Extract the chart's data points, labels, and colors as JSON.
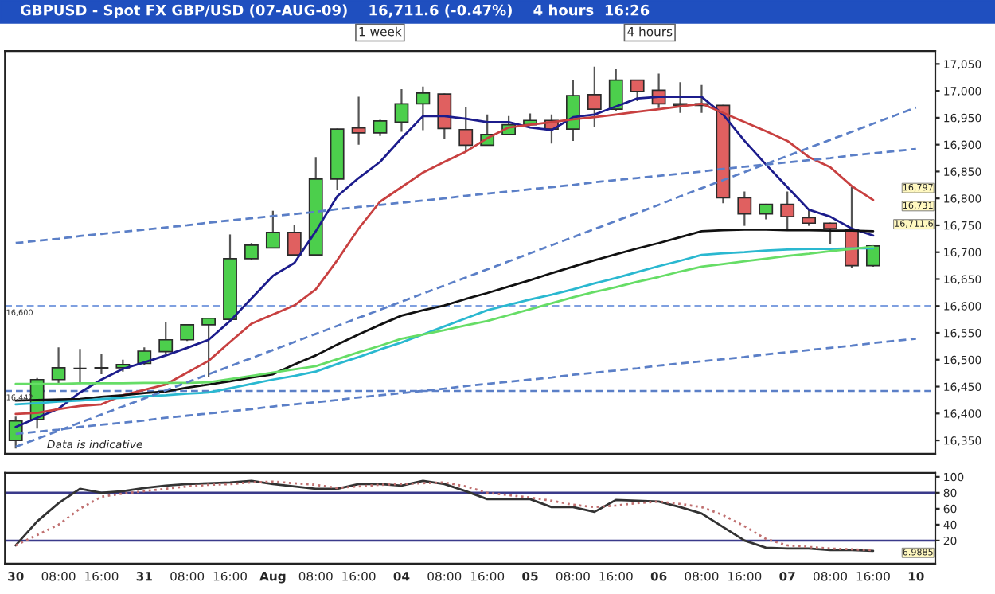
{
  "chart_data": [
    {
      "type": "candlestick",
      "title": "GBPUSD - Spot FX GBP/USD (07-AUG-09)    16,711.6 (-0.47%)    4 hours  16:26",
      "categories": [
        "30",
        null,
        "08:00",
        null,
        "16:00",
        null,
        "31",
        null,
        "08:00",
        null,
        "16:00",
        null,
        "Aug",
        null,
        "08:00",
        null,
        "16:00",
        null,
        "04",
        null,
        "08:00",
        null,
        "16:00",
        null,
        "05",
        null,
        "08:00",
        null,
        "16:00",
        null,
        "06",
        null,
        "08:00",
        null,
        "16:00",
        null,
        "07",
        null,
        "08:00",
        null,
        "16:00",
        null,
        "10"
      ],
      "ohlc": [
        [
          16350,
          16394,
          16335,
          16386
        ],
        [
          16389,
          16466,
          16372,
          16463
        ],
        [
          16463,
          16523,
          16456,
          16485
        ],
        [
          16484,
          16520,
          16455,
          16484
        ],
        [
          16484,
          16510,
          16473,
          16485
        ],
        [
          16485,
          16500,
          16478,
          16491
        ],
        [
          16493,
          16523,
          16490,
          16516
        ],
        [
          16515,
          16570,
          16510,
          16537
        ],
        [
          16537,
          16566,
          16535,
          16565
        ],
        [
          16565,
          16578,
          16468,
          16577
        ],
        [
          16575,
          16733,
          16574,
          16688
        ],
        [
          16688,
          16717,
          16685,
          16713
        ],
        [
          16708,
          16777,
          16707,
          16737
        ],
        [
          16737,
          16751,
          16694,
          16695
        ],
        [
          16695,
          16877,
          16694,
          16836
        ],
        [
          16836,
          16930,
          16816,
          16929
        ],
        [
          16931,
          16989,
          16900,
          16922
        ],
        [
          16922,
          16946,
          16916,
          16944
        ],
        [
          16942,
          17003,
          16924,
          16976
        ],
        [
          16976,
          17008,
          16927,
          16996
        ],
        [
          16994,
          16995,
          16910,
          16930
        ],
        [
          16928,
          16969,
          16887,
          16899
        ],
        [
          16899,
          16956,
          16899,
          16919
        ],
        [
          16919,
          16953,
          16918,
          16937
        ],
        [
          16937,
          16958,
          16935,
          16945
        ],
        [
          16945,
          16956,
          16902,
          16929
        ],
        [
          16929,
          17020,
          16907,
          16991
        ],
        [
          16993,
          17045,
          16932,
          16966
        ],
        [
          16966,
          17040,
          16963,
          17020
        ],
        [
          17020,
          17021,
          16981,
          16999
        ],
        [
          17001,
          17032,
          16968,
          16976
        ],
        [
          16973,
          17016,
          16959,
          16976
        ],
        [
          16976,
          17011,
          16959,
          16973
        ],
        [
          16973,
          16974,
          16791,
          16801
        ],
        [
          16801,
          16813,
          16749,
          16771
        ],
        [
          16771,
          16790,
          16761,
          16789
        ],
        [
          16789,
          16813,
          16744,
          16766
        ],
        [
          16764,
          16779,
          16749,
          16754
        ],
        [
          16754,
          16755,
          16715,
          16744
        ],
        [
          16742,
          16821,
          16670,
          16675
        ],
        [
          16675,
          16713,
          16673,
          16711.6
        ],
        null,
        null
      ],
      "colors": [
        "#4ccf4c",
        "#4ccf4c",
        "#4ccf4c",
        "#333333",
        "#333333",
        "#4ccf4c",
        "#4ccf4c",
        "#4ccf4c",
        "#4ccf4c",
        "#4ccf4c",
        "#4ccf4c",
        "#4ccf4c",
        "#4ccf4c",
        "#e06060",
        "#4ccf4c",
        "#4ccf4c",
        "#e06060",
        "#4ccf4c",
        "#4ccf4c",
        "#4ccf4c",
        "#e06060",
        "#e06060",
        "#4ccf4c",
        "#4ccf4c",
        "#4ccf4c",
        "#e06060",
        "#4ccf4c",
        "#e06060",
        "#4ccf4c",
        "#e06060",
        "#e06060",
        "#808080",
        "#808080",
        "#e06060",
        "#e06060",
        "#4ccf4c",
        "#e06060",
        "#e06060",
        "#e06060",
        "#e06060",
        "#4ccf4c",
        null,
        null
      ],
      "series": [
        {
          "type": "line",
          "color": "#1c1c8c",
          "values": [
            16375,
            16392,
            16409,
            16439,
            16463,
            16483,
            16495,
            16508,
            16522,
            16537,
            16572,
            16614,
            16656,
            16680,
            16739,
            16804,
            16838,
            16868,
            16912,
            16953,
            16953,
            16948,
            16942,
            16942,
            16932,
            16927,
            16951,
            16956,
            16971,
            16986,
            16989,
            16989,
            16989,
            16956,
            16907,
            16863,
            16821,
            16779,
            16766,
            16744,
            16731,
            null,
            null
          ]
        },
        {
          "type": "line",
          "color": "#c84040",
          "values": [
            16399,
            16401,
            16408,
            16414,
            16417,
            16434,
            16444,
            16454,
            16476,
            16498,
            16533,
            16567,
            16584,
            16601,
            16631,
            16685,
            16744,
            16794,
            16821,
            16848,
            16868,
            16887,
            16912,
            16932,
            16937,
            16942,
            16947,
            16951,
            16956,
            16961,
            16966,
            16971,
            16976,
            16959,
            16942,
            16925,
            16907,
            16877,
            16858,
            16823,
            16797,
            null,
            null
          ]
        },
        {
          "type": "line",
          "color": "#111111",
          "values": [
            16424,
            16425,
            16426,
            16427,
            16431,
            16434,
            16438,
            16441,
            16448,
            16454,
            16460,
            16467,
            16473,
            16491,
            16508,
            16528,
            16547,
            16565,
            16582,
            16592,
            16601,
            16613,
            16624,
            16636,
            16648,
            16661,
            16673,
            16685,
            16696,
            16707,
            16717,
            16728,
            16739,
            16741,
            16742,
            16742,
            16741,
            16741,
            16740,
            16740,
            16739,
            null,
            null
          ]
        },
        {
          "type": "line",
          "color": "#2ab8d0",
          "values": [
            16417,
            16419,
            16422,
            16424,
            16427,
            16429,
            16432,
            16434,
            16437,
            16439,
            16447,
            16455,
            16463,
            16470,
            16478,
            16492,
            16505,
            16519,
            16532,
            16547,
            16562,
            16577,
            16592,
            16602,
            16612,
            16621,
            16631,
            16642,
            16652,
            16663,
            16674,
            16684,
            16695,
            16698,
            16700,
            16703,
            16705,
            16706,
            16706,
            16707,
            16707,
            null,
            null
          ]
        },
        {
          "type": "line",
          "color": "#66dd66",
          "values": [
            16455,
            16455,
            16455,
            16456,
            16456,
            16456,
            16457,
            16457,
            16457,
            16458,
            16464,
            16470,
            16476,
            16482,
            16488,
            16501,
            16514,
            16526,
            16539,
            16547,
            16555,
            16564,
            16572,
            16583,
            16594,
            16605,
            16616,
            16626,
            16635,
            16645,
            16654,
            16664,
            16673,
            16678,
            16683,
            16688,
            16693,
            16697,
            16702,
            16706,
            16710,
            null,
            null
          ]
        },
        {
          "type": "line",
          "color": "#5b7fc7",
          "line_style": "dashed",
          "values": [
            16717,
            16721,
            16725,
            16730,
            16734,
            16738,
            16742,
            16746,
            16750,
            16755,
            16759,
            16763,
            16767,
            16771,
            16775,
            16780,
            16784,
            16788,
            16792,
            16796,
            16800,
            16805,
            16809,
            16813,
            16817,
            16821,
            16825,
            16830,
            16834,
            16838,
            16842,
            16846,
            16850,
            16855,
            16859,
            16863,
            16867,
            16871,
            16875,
            16880,
            16884,
            16888,
            16892
          ]
        },
        {
          "type": "line",
          "color": "#5b7fc7",
          "line_style": "dashed",
          "values": [
            16338,
            16353,
            16368,
            16383,
            16398,
            16413,
            16428,
            16443,
            16458,
            16473,
            16488,
            16503,
            16518,
            16533,
            16548,
            16563,
            16578,
            16593,
            16608,
            16623,
            16638,
            16653,
            16668,
            16683,
            16698,
            16713,
            16728,
            16743,
            16758,
            16773,
            16788,
            16804,
            16819,
            16834,
            16849,
            16864,
            16879,
            16894,
            16909,
            16924,
            16939,
            16954,
            16969
          ]
        },
        {
          "type": "line",
          "color": "#5b7fc7",
          "line_style": "dashed",
          "values": [
            16362,
            16366,
            16370,
            16375,
            16379,
            16383,
            16387,
            16392,
            16396,
            16400,
            16404,
            16408,
            16413,
            16417,
            16421,
            16425,
            16430,
            16434,
            16438,
            16442,
            16446,
            16451,
            16455,
            16459,
            16463,
            16467,
            16472,
            16476,
            16480,
            16484,
            16489,
            16493,
            16497,
            16501,
            16505,
            16510,
            16514,
            16518,
            16522,
            16526,
            16531,
            16535,
            16539
          ]
        }
      ],
      "ref_lines": [
        {
          "axis": "y",
          "value": 16600,
          "label": "16,600",
          "color": "#7fa0e0",
          "line_style": "dashed"
        },
        {
          "axis": "y",
          "value": 16442,
          "label": "16,442",
          "color": "#5b7fc7",
          "line_style": "dashed"
        }
      ],
      "annotations": [
        "Data is indicative",
        "1 week",
        "4 hours",
        "16,797",
        "16,731",
        "16,711.6"
      ],
      "ylim": [
        16325,
        17074
      ],
      "yticks": [
        {
          "value": 16350,
          "label": "16,350"
        },
        {
          "value": 16400,
          "label": "16,400"
        },
        {
          "value": 16450,
          "label": "16,450"
        },
        {
          "value": 16500,
          "label": "16,500"
        },
        {
          "value": 16550,
          "label": "16,550"
        },
        {
          "value": 16600,
          "label": "16,600"
        },
        {
          "value": 16650,
          "label": "16,650"
        },
        {
          "value": 16700,
          "label": "16,700"
        },
        {
          "value": 16750,
          "label": "16,750"
        },
        {
          "value": 16800,
          "label": "16,800"
        },
        {
          "value": 16850,
          "label": "16,850"
        },
        {
          "value": 16900,
          "label": "16,900"
        },
        {
          "value": 16950,
          "label": "16,950"
        },
        {
          "value": 17000,
          "label": "17,000"
        },
        {
          "value": 17050,
          "label": "17,050"
        }
      ],
      "tick_labels": "y"
    },
    {
      "type": "line",
      "series": [
        {
          "color": "#333333",
          "values": [
            14,
            44,
            67,
            85,
            80,
            82,
            86,
            89,
            91,
            92,
            93,
            95,
            91,
            88,
            85,
            85,
            91,
            91,
            89,
            95,
            91,
            82,
            72,
            72,
            72,
            62,
            62,
            56,
            71,
            70,
            69,
            62,
            54,
            37,
            20,
            11,
            10,
            10,
            8,
            8,
            7,
            null,
            null
          ]
        },
        {
          "color": "#c07070",
          "line_style": "dotted",
          "values": [
            14,
            27,
            40,
            60,
            75,
            79,
            82,
            85,
            88,
            90,
            91,
            93,
            94,
            92,
            90,
            86,
            88,
            90,
            91,
            92,
            93,
            88,
            80,
            77,
            74,
            70,
            65,
            62,
            64,
            67,
            69,
            66,
            62,
            52,
            38,
            22,
            14,
            12,
            10,
            9,
            8,
            null,
            null
          ]
        }
      ],
      "ref_lines": [
        {
          "axis": "y",
          "value": 80,
          "color": "#3a3a8a"
        },
        {
          "axis": "y",
          "value": 20,
          "color": "#3a3a8a"
        }
      ],
      "annotations": [
        "6.9885"
      ],
      "ylim": [
        -9,
        105
      ],
      "yticks": [
        20,
        40,
        60,
        80,
        100
      ]
    }
  ]
}
